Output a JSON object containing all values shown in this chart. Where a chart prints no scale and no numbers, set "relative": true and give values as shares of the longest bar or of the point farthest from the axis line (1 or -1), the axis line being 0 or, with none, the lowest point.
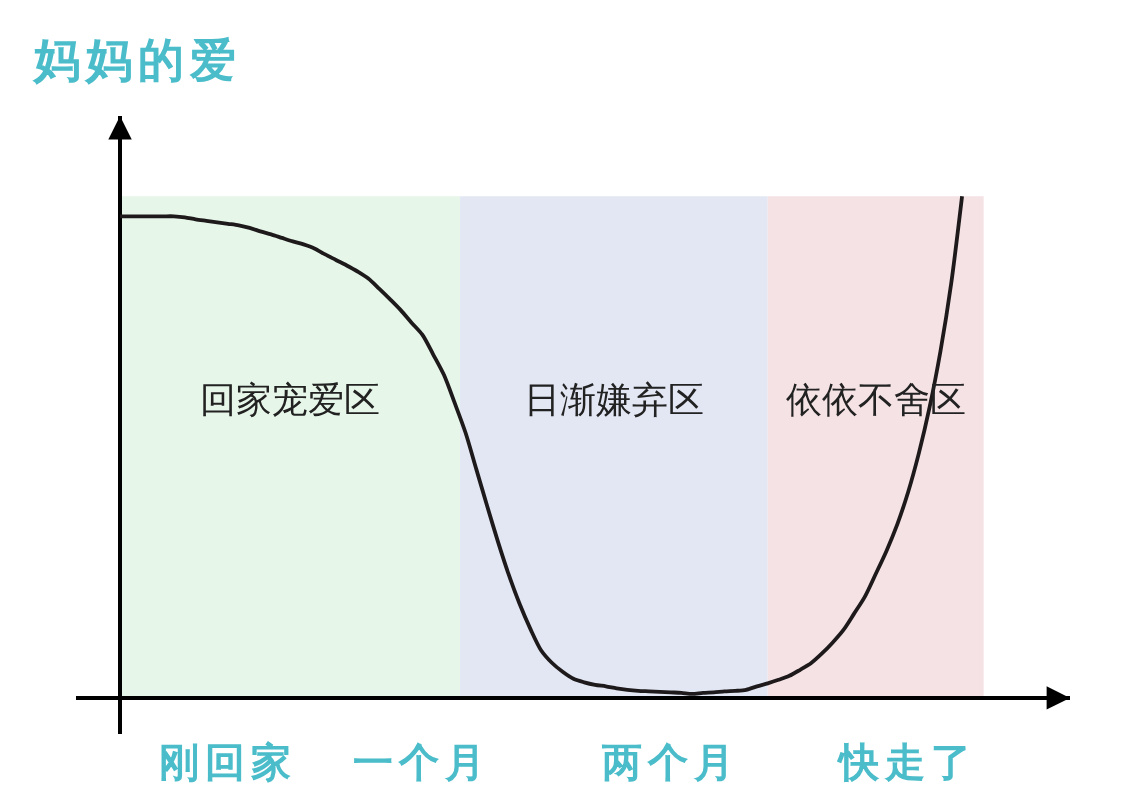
{
  "chart_data": {
    "type": "line",
    "relative": true,
    "ylabel": "妈妈的爱",
    "categories": [
      null,
      null,
      null,
      null,
      null,
      null,
      null,
      null,
      null,
      null,
      "刚回家",
      null,
      null,
      null,
      null,
      null,
      null,
      null,
      null,
      null,
      null,
      null,
      null,
      null,
      null,
      null,
      null,
      null,
      "一个月",
      null,
      null,
      null,
      null,
      null,
      null,
      null,
      null,
      null,
      null,
      null,
      null,
      null,
      null,
      null,
      null,
      null,
      null,
      null,
      null,
      null,
      null,
      "两个月",
      null,
      null,
      null,
      null,
      null,
      null,
      null,
      null,
      null,
      null,
      null,
      null,
      null,
      null,
      null,
      null,
      null,
      null,
      null,
      null,
      null,
      "快走了",
      null,
      null,
      null,
      null,
      null,
      null,
      null
    ],
    "series": [
      {
        "color": "#1e1a1c",
        "values": [
          0.96,
          0.96,
          0.96,
          0.96,
          0.96,
          0.96,
          0.958,
          0.954,
          0.951,
          0.948,
          0.945,
          0.942,
          0.937,
          0.93,
          0.924,
          0.917,
          0.91,
          0.904,
          0.896,
          0.884,
          0.873,
          0.862,
          0.85,
          0.836,
          0.816,
          0.795,
          0.773,
          0.748,
          0.724,
          0.685,
          0.644,
          0.588,
          0.529,
          0.456,
          0.383,
          0.312,
          0.246,
          0.188,
          0.138,
          0.095,
          0.07,
          0.052,
          0.038,
          0.031,
          0.026,
          0.023,
          0.019,
          0.016,
          0.014,
          0.013,
          0.012,
          0.011,
          0.01,
          0.008,
          0.01,
          0.011,
          0.013,
          0.014,
          0.016,
          0.023,
          0.029,
          0.036,
          0.044,
          0.056,
          0.069,
          0.088,
          0.11,
          0.135,
          0.168,
          0.202,
          0.247,
          0.293,
          0.346,
          0.41,
          0.488,
          0.58,
          0.691,
          0.827,
          1.0,
          null,
          null
        ]
      }
    ],
    "annotations": [
      "回家宠爱区",
      "日渐嫌弃区",
      "依依不舍区"
    ],
    "marker": "none",
    "line_style": "solid"
  }
}
